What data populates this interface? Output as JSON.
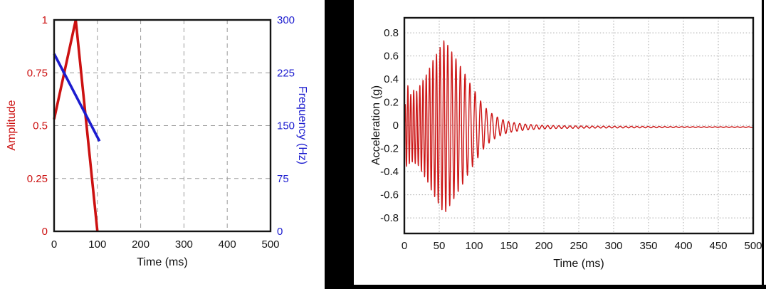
{
  "figure": {
    "description": "Two plots: amplitude/frequency ramp definition and resulting acceleration chirp time history",
    "divider_color": "#000000",
    "background": "#ffffff"
  },
  "chart_data": [
    {
      "type": "line",
      "title": "",
      "xlabel": "Time (ms)",
      "xlim": [
        0,
        500
      ],
      "x_ticks": [
        0,
        100,
        200,
        300,
        400,
        500
      ],
      "x_tick_labels": [
        "0",
        "100",
        "200",
        "300",
        "400",
        "500"
      ],
      "grid": "dashed",
      "grid_color": "#9a9a9a",
      "axes": {
        "left": {
          "label": "Amplitude",
          "color": "#cc1111",
          "lim": [
            0,
            1
          ],
          "ticks": [
            0,
            0.25,
            0.5,
            0.75,
            1
          ],
          "tick_labels": [
            "0",
            "0.25",
            "0.5",
            "0.75",
            "1"
          ]
        },
        "right": {
          "label": "Frequency (Hz)",
          "color": "#1c1ccf",
          "lim": [
            0,
            300
          ],
          "ticks": [
            0,
            75,
            150,
            225,
            300
          ],
          "tick_labels": [
            "0",
            "75",
            "150",
            "225",
            "300"
          ]
        }
      },
      "series": [
        {
          "name": "Amplitude",
          "axis": "left",
          "color": "#cc1111",
          "points": [
            [
              0,
              0.53
            ],
            [
              50,
              1.0
            ],
            [
              100,
              0.0
            ]
          ]
        },
        {
          "name": "Frequency (Hz)",
          "axis": "right",
          "color": "#1c1ccf",
          "points": [
            [
              0,
              252
            ],
            [
              105,
              128
            ]
          ]
        }
      ]
    },
    {
      "type": "line",
      "title": "",
      "xlabel": "Time (ms)",
      "ylabel": "Acceleration (g)",
      "xlim": [
        0,
        500
      ],
      "x_ticks": [
        0,
        50,
        100,
        150,
        200,
        250,
        300,
        350,
        400,
        450,
        500
      ],
      "x_tick_labels": [
        "0",
        "50",
        "100",
        "150",
        "200",
        "250",
        "300",
        "350",
        "400",
        "450",
        "500"
      ],
      "ylim": [
        -0.935,
        0.93
      ],
      "y_ticks": [
        -0.8,
        -0.6,
        -0.4,
        -0.2,
        0,
        0.2,
        0.4,
        0.6,
        0.8
      ],
      "y_tick_labels": [
        "-0.8",
        "-0.6",
        "-0.4",
        "-0.2",
        "0",
        "0.2",
        "0.4",
        "0.6",
        "0.8"
      ],
      "grid": "dotted",
      "grid_color": "#a8a8a8",
      "series": [
        {
          "name": "Acceleration",
          "color": "#cc1616",
          "signal": "decaying chirp burst",
          "baseline_g": -0.015,
          "chirp": {
            "f_start_hz": 250,
            "f_end_hz": 125,
            "sweep_ms": 105
          },
          "peak_g": 0.75,
          "peak_time_ms": 57,
          "envelope_g": [
            [
              0,
              0.02
            ],
            [
              2,
              0.33
            ],
            [
              5,
              0.36
            ],
            [
              9,
              0.28
            ],
            [
              13,
              0.32
            ],
            [
              18,
              0.31
            ],
            [
              23,
              0.37
            ],
            [
              28,
              0.42
            ],
            [
              33,
              0.47
            ],
            [
              38,
              0.54
            ],
            [
              43,
              0.6
            ],
            [
              48,
              0.65
            ],
            [
              53,
              0.71
            ],
            [
              57,
              0.75
            ],
            [
              61,
              0.72
            ],
            [
              66,
              0.67
            ],
            [
              71,
              0.62
            ],
            [
              76,
              0.57
            ],
            [
              81,
              0.52
            ],
            [
              86,
              0.47
            ],
            [
              91,
              0.41
            ],
            [
              96,
              0.36
            ],
            [
              101,
              0.31
            ],
            [
              106,
              0.26
            ],
            [
              111,
              0.21
            ],
            [
              116,
              0.17
            ],
            [
              121,
              0.14
            ],
            [
              127,
              0.11
            ],
            [
              134,
              0.085
            ],
            [
              141,
              0.065
            ],
            [
              148,
              0.05
            ],
            [
              156,
              0.04
            ],
            [
              165,
              0.032
            ],
            [
              175,
              0.025
            ],
            [
              185,
              0.02
            ],
            [
              200,
              0.015
            ],
            [
              220,
              0.012
            ],
            [
              250,
              0.01
            ],
            [
              280,
              0.008
            ],
            [
              320,
              0.007
            ],
            [
              350,
              0.006
            ],
            [
              400,
              0.004
            ],
            [
              450,
              0.003
            ],
            [
              500,
              0.003
            ]
          ]
        }
      ]
    }
  ]
}
